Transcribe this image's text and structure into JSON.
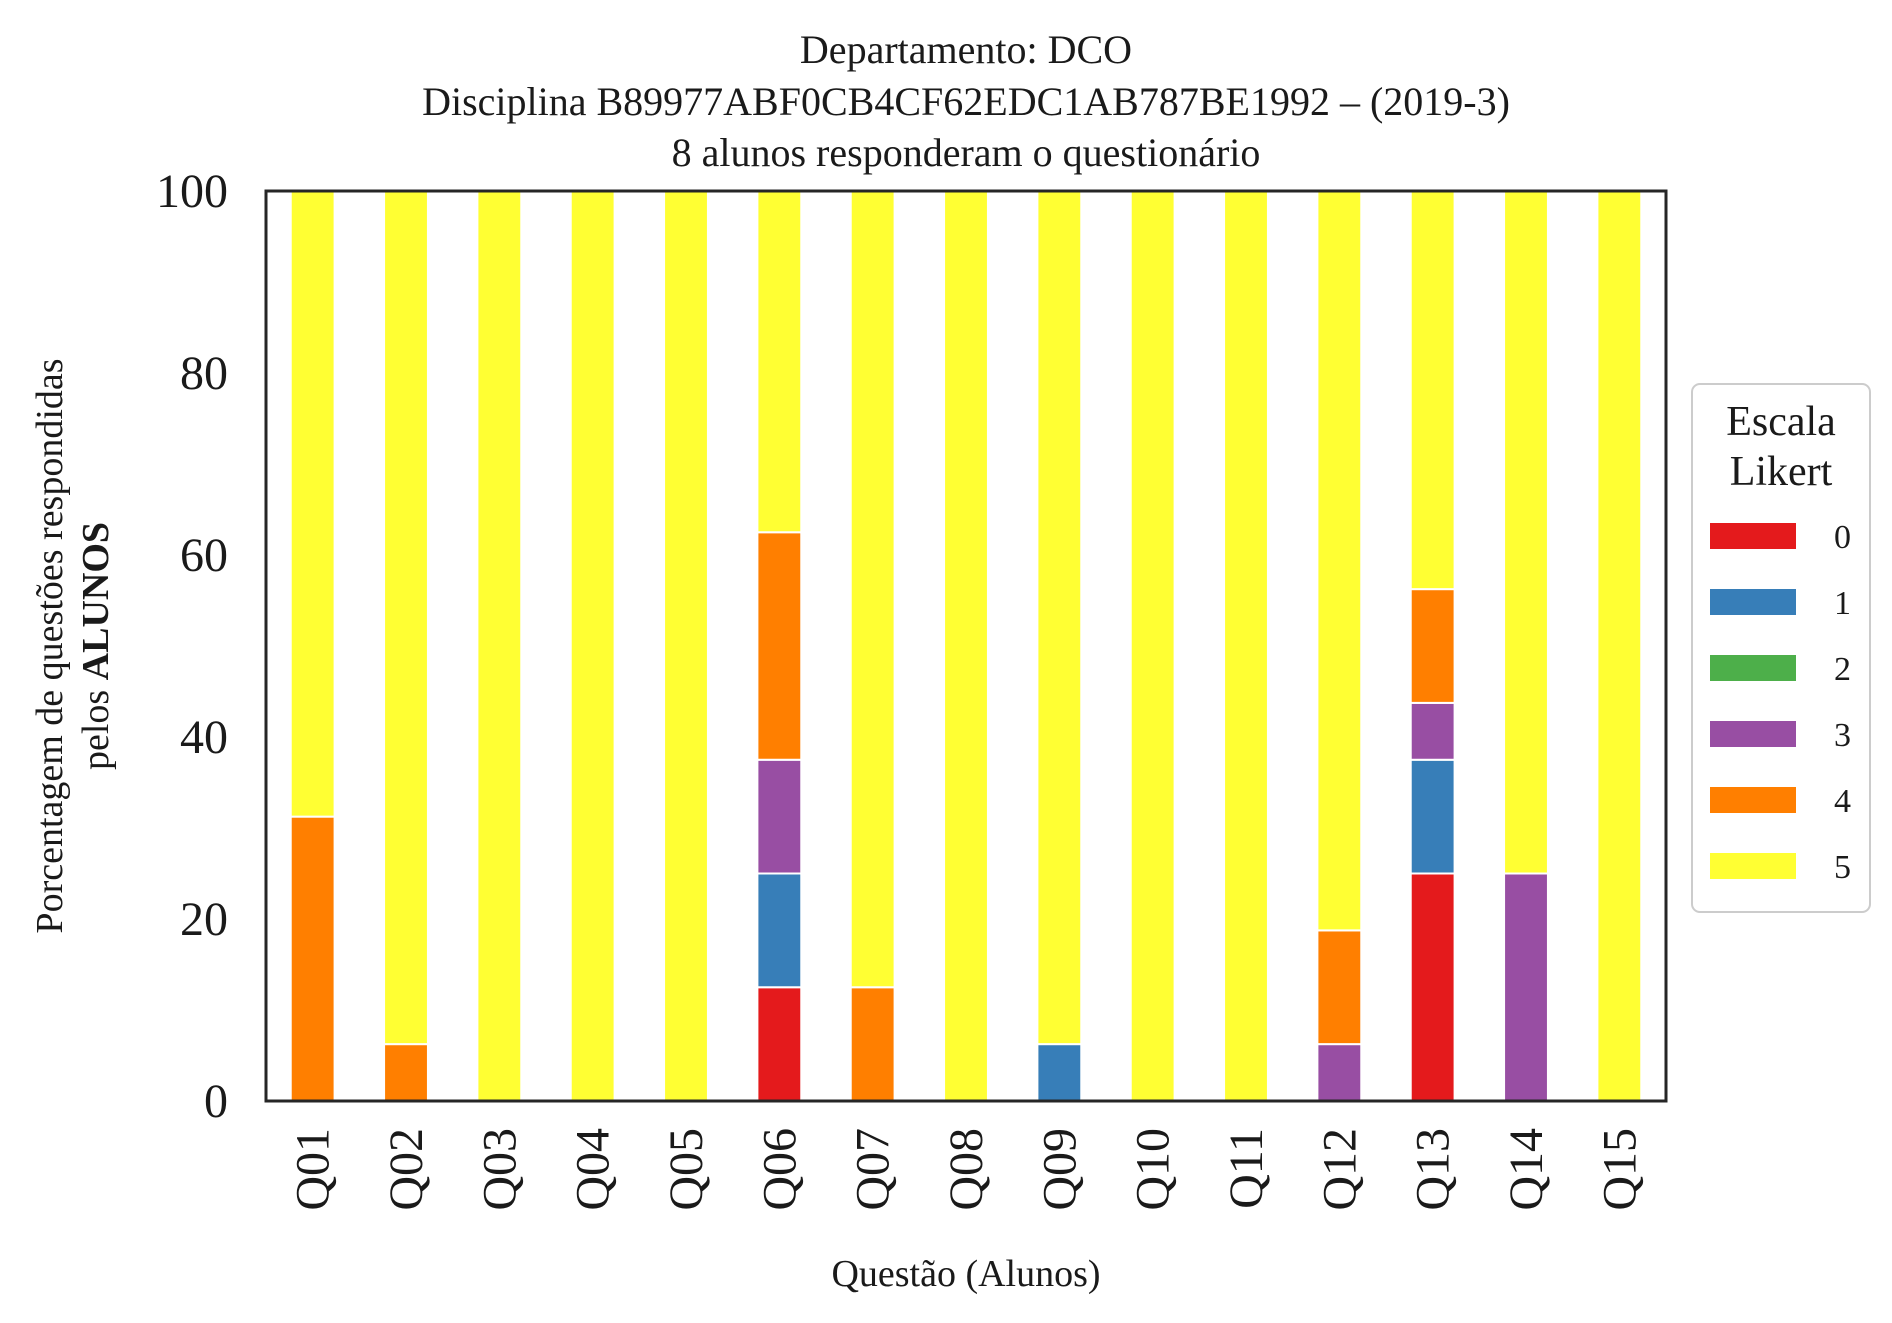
{
  "chart_data": {
    "type": "bar",
    "stacked": true,
    "title_lines": [
      "Departamento: DCO",
      "Disciplina B89977ABF0CB4CF62EDC1AB787BE1992 – (2019-3)",
      "8 alunos responderam o questionário"
    ],
    "xlabel": "Questão (Alunos)",
    "ylabel_line1": "Porcentagem de questões respondidas",
    "ylabel_line2_plain": "pelos ",
    "ylabel_line2_bold": "ALUNOS",
    "ylim": [
      0,
      100
    ],
    "yticks": [
      "0",
      "20",
      "40",
      "60",
      "80",
      "100"
    ],
    "grid": false,
    "legend": {
      "title_lines": [
        "Escala",
        "Likert"
      ],
      "placement": "right-center"
    },
    "categories": [
      "Q01",
      "Q02",
      "Q03",
      "Q04",
      "Q05",
      "Q06",
      "Q07",
      "Q08",
      "Q09",
      "Q10",
      "Q11",
      "Q12",
      "Q13",
      "Q14",
      "Q15"
    ],
    "series": [
      {
        "name": "0",
        "color": "#e41a1c",
        "values": [
          0,
          0,
          0,
          0,
          0,
          12.5,
          0,
          0,
          0,
          0,
          0,
          0,
          25,
          0,
          0
        ]
      },
      {
        "name": "1",
        "color": "#377eb8",
        "values": [
          0,
          0,
          0,
          0,
          0,
          12.5,
          0,
          0,
          6.25,
          0,
          0,
          0,
          12.5,
          0,
          0
        ]
      },
      {
        "name": "2",
        "color": "#4daf4a",
        "values": [
          0,
          0,
          0,
          0,
          0,
          0,
          0,
          0,
          0,
          0,
          0,
          0,
          0,
          0,
          0
        ]
      },
      {
        "name": "3",
        "color": "#984ea3",
        "values": [
          0,
          0,
          0,
          0,
          0,
          12.5,
          0,
          0,
          0,
          0,
          0,
          6.25,
          6.25,
          25,
          0
        ]
      },
      {
        "name": "4",
        "color": "#ff7f00",
        "values": [
          31.25,
          6.25,
          0,
          0,
          0,
          25,
          12.5,
          0,
          0,
          0,
          0,
          12.5,
          12.5,
          0,
          0
        ]
      },
      {
        "name": "5",
        "color": "#ffff33",
        "values": [
          68.75,
          93.75,
          100,
          100,
          100,
          37.5,
          87.5,
          100,
          93.75,
          100,
          100,
          81.25,
          43.75,
          75,
          100
        ]
      }
    ]
  }
}
